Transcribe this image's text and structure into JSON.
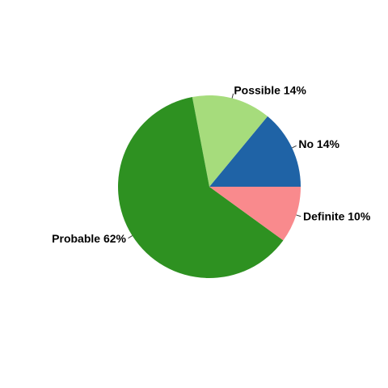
{
  "chart_data": {
    "type": "pie",
    "title": "",
    "slices": [
      {
        "label": "No",
        "value": 14,
        "display": "No 14%",
        "color": "#1f63a6"
      },
      {
        "label": "Possible",
        "value": 14,
        "display": "Possible 14%",
        "color": "#a6dc7c"
      },
      {
        "label": "Probable",
        "value": 62,
        "display": "Probable 62%",
        "color": "#2e9121"
      },
      {
        "label": "Definite",
        "value": 10,
        "display": "Definite 10%",
        "color": "#f98a8d"
      }
    ],
    "start_angle_deg": 0,
    "direction": "counterclockwise",
    "legend": "none"
  }
}
